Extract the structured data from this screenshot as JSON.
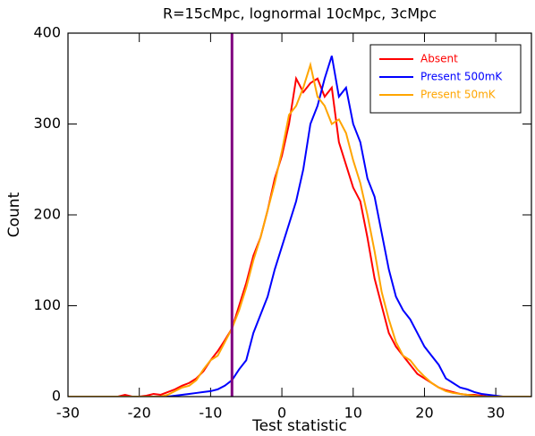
{
  "chart_data": {
    "type": "line",
    "title": "R=15cMpc, lognormal 10cMpc, 3cMpc",
    "x_label": "Test statistic",
    "y_label": "Count",
    "x": [
      -30,
      -29,
      -28,
      -27,
      -26,
      -25,
      -24,
      -23,
      -22,
      -21,
      -20,
      -19,
      -18,
      -17,
      -16,
      -15,
      -14,
      -13,
      -12,
      -11,
      -10,
      -9,
      -8,
      -7,
      -6,
      -5,
      -4,
      -3,
      -2,
      -1,
      0,
      1,
      2,
      3,
      4,
      5,
      6,
      7,
      8,
      9,
      10,
      11,
      12,
      13,
      14,
      15,
      16,
      17,
      18,
      19,
      20,
      21,
      22,
      23,
      24,
      25,
      26,
      27,
      28,
      29,
      30,
      31,
      32,
      33,
      34,
      35
    ],
    "series": [
      {
        "name": "Absent",
        "color": "#ff0000",
        "values": [
          0,
          0,
          0,
          0,
          0,
          0,
          0,
          0,
          2,
          0,
          0,
          1,
          3,
          2,
          5,
          8,
          12,
          15,
          20,
          28,
          40,
          50,
          62,
          75,
          100,
          125,
          155,
          175,
          205,
          240,
          265,
          300,
          350,
          335,
          345,
          350,
          330,
          340,
          280,
          255,
          230,
          215,
          175,
          130,
          100,
          70,
          55,
          45,
          35,
          25,
          20,
          15,
          10,
          7,
          5,
          3,
          2,
          2,
          1,
          0,
          0,
          0,
          0,
          0,
          0,
          0
        ]
      },
      {
        "name": "Present 500mK",
        "color": "#0000ff",
        "values": [
          0,
          0,
          0,
          0,
          0,
          0,
          0,
          0,
          0,
          0,
          0,
          0,
          0,
          0,
          0,
          1,
          2,
          3,
          4,
          5,
          6,
          8,
          12,
          18,
          30,
          40,
          70,
          90,
          110,
          140,
          165,
          190,
          215,
          250,
          300,
          320,
          350,
          375,
          330,
          340,
          300,
          280,
          240,
          220,
          180,
          140,
          110,
          95,
          85,
          70,
          55,
          45,
          35,
          20,
          15,
          10,
          8,
          5,
          3,
          2,
          1,
          0,
          0,
          0,
          0,
          0
        ]
      },
      {
        "name": "Present 50mK",
        "color": "#ffa500",
        "values": [
          0,
          0,
          0,
          0,
          0,
          0,
          0,
          0,
          0,
          0,
          0,
          0,
          0,
          0,
          2,
          6,
          10,
          12,
          18,
          30,
          40,
          45,
          60,
          75,
          95,
          120,
          150,
          175,
          205,
          235,
          270,
          310,
          320,
          340,
          365,
          330,
          320,
          300,
          305,
          290,
          260,
          235,
          200,
          160,
          115,
          85,
          60,
          45,
          40,
          30,
          22,
          15,
          10,
          6,
          4,
          3,
          2,
          1,
          0,
          0,
          0,
          0,
          0,
          0,
          0,
          0
        ]
      }
    ],
    "vline": {
      "x": -7,
      "color": "#7f007f"
    },
    "xlim": [
      -30,
      35
    ],
    "ylim": [
      0,
      400
    ],
    "xticks": [
      -30,
      -20,
      -10,
      0,
      10,
      20,
      30
    ],
    "yticks": [
      0,
      100,
      200,
      300,
      400
    ],
    "legend": "upper right"
  }
}
